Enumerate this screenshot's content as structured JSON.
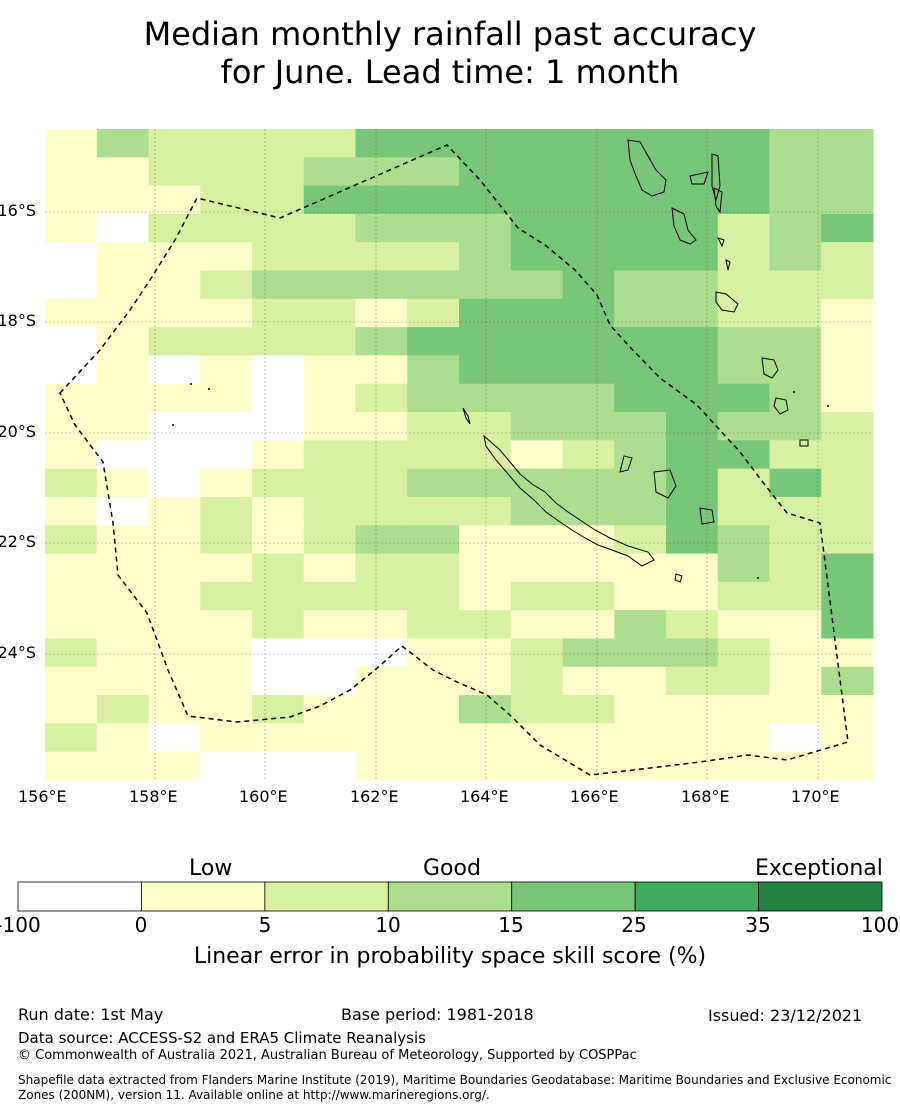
{
  "title_line1": "Median monthly rainfall past accuracy",
  "title_line2": "for June. Lead time: 1 month",
  "map": {
    "x_ticks": [
      "156°E",
      "158°E",
      "160°E",
      "162°E",
      "164°E",
      "166°E",
      "168°E",
      "170°E"
    ],
    "y_ticks": [
      "16°S",
      "18°S",
      "20°S",
      "22°S",
      "24°S"
    ],
    "colors": [
      "#ffffff",
      "#ffffcc",
      "#d9f0a3",
      "#addd8e",
      "#78c679",
      "#41ab5d",
      "#238443"
    ],
    "grid_rows": [
      "1322224444444433",
      "1122233344444433",
      "1112244444444433",
      "1022223334444234",
      "0111222234444232",
      "0112333333433222",
      "1111221244433221",
      "0122223444444331",
      "0101011344444331",
      "1111012333344431",
      "1100011223334332",
      "1000122221234422",
      "2101222333334242",
      "1012122223334222",
      "2112123311124322",
      "1111212211111324",
      "1112222212211224",
      "1111211221132114",
      "2111000112333211",
      "1111001112112213",
      "1211211132211111",
      "2101111111111101",
      "1110001111111111"
    ]
  },
  "colorbar": {
    "categories": [
      "Low",
      "Good",
      "Exceptional"
    ],
    "ticks": [
      "-100",
      "0",
      "5",
      "10",
      "15",
      "25",
      "35",
      "100"
    ],
    "title": "Linear error in probability space skill score (%)"
  },
  "footer": {
    "run_date": "Run date: 1st May",
    "base_period": "Base period: 1981-2018",
    "issued": "Issued: 23/12/2021",
    "data_source": "Data source: ACCESS-S2 and ERA5 Climate Reanalysis",
    "copyright": "© Commonwealth of Australia 2021, Australian Bureau of Meteorology, Supported by COSPPac",
    "shapefile_note": "Shapefile data extracted from Flanders Marine Institute (2019), Maritime Boundaries Geodatabase: Maritime Boundaries and Exclusive Economic Zones (200NM), version 11. Available online at http://www.marineregions.org/."
  }
}
